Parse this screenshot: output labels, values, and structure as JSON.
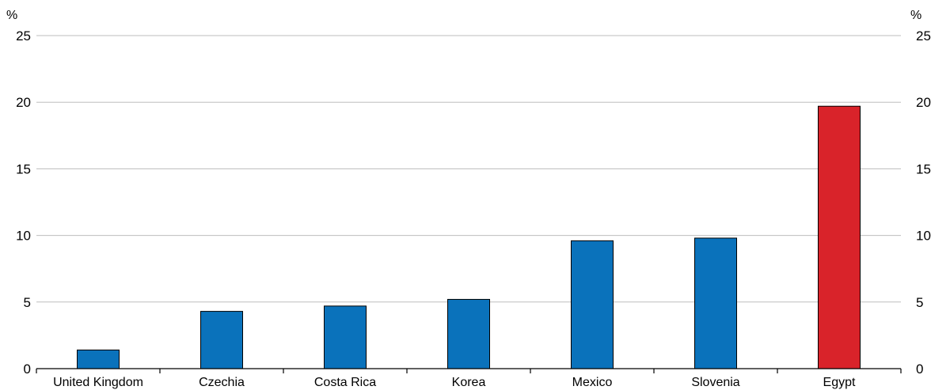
{
  "chart_data": {
    "type": "bar",
    "categories": [
      "United Kingdom",
      "Czechia",
      "Costa Rica",
      "Korea",
      "Mexico",
      "Slovenia",
      "Egypt"
    ],
    "values": [
      1.4,
      4.3,
      4.7,
      5.2,
      9.6,
      9.8,
      19.7
    ],
    "highlight_category": "Egypt",
    "colors": {
      "default_bar": "#0a72bb",
      "highlight_bar": "#d9232a",
      "gridline": "#bdbdbd",
      "axis": "#000000"
    },
    "ylim": [
      0,
      25
    ],
    "yticks": [
      "0",
      "5",
      "10",
      "15",
      "20",
      "25"
    ],
    "y_unit_left": "%",
    "y_unit_right": "%",
    "grid": true,
    "legend": "none"
  }
}
